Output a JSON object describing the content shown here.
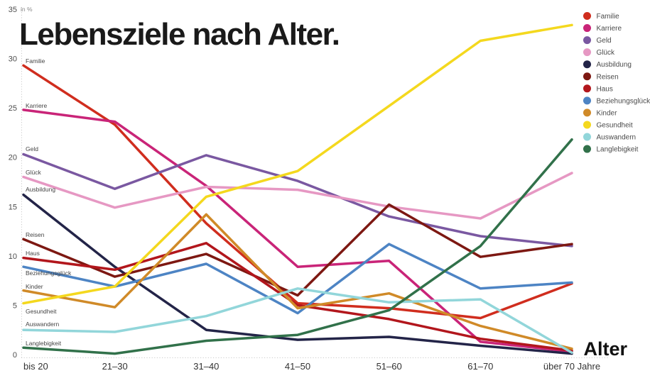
{
  "title": "Lebensziele nach Alter.",
  "y_axis": {
    "unit": "in %",
    "ticks": [
      35,
      30,
      25,
      20,
      15,
      10,
      5,
      0
    ]
  },
  "x_axis": {
    "label": "Alter"
  },
  "chart_data": {
    "type": "line",
    "title": "Lebensziele nach Alter.",
    "xlabel": "Alter",
    "ylabel": "in %",
    "ylim": [
      0,
      35
    ],
    "grid": false,
    "legend_position": "top-right",
    "categories": [
      "bis 20",
      "21–30",
      "31–40",
      "41–50",
      "51–60",
      "61–70",
      "über 70 Jahre"
    ],
    "series": [
      {
        "name": "Familie",
        "color": "#d02d1e",
        "values": [
          29.3,
          23.3,
          13.3,
          5.2,
          4.7,
          3.7,
          7.2
        ]
      },
      {
        "name": "Karriere",
        "color": "#c92478",
        "values": [
          24.8,
          23.6,
          17.1,
          8.9,
          9.5,
          1.3,
          0.3
        ]
      },
      {
        "name": "Geld",
        "color": "#7a58a1",
        "values": [
          20.3,
          16.8,
          20.2,
          17.6,
          14.0,
          12.0,
          11.0
        ]
      },
      {
        "name": "Glück",
        "color": "#e698c3",
        "values": [
          18.0,
          14.9,
          17.0,
          16.7,
          15.0,
          13.8,
          18.4
        ]
      },
      {
        "name": "Ausbildung",
        "color": "#232448",
        "values": [
          16.2,
          8.9,
          2.5,
          1.5,
          1.8,
          0.9,
          0.1
        ]
      },
      {
        "name": "Reisen",
        "color": "#7d1812",
        "values": [
          11.7,
          7.9,
          10.2,
          6.0,
          15.2,
          9.9,
          11.2
        ]
      },
      {
        "name": "Haus",
        "color": "#b2161c",
        "values": [
          9.8,
          8.6,
          11.3,
          5.0,
          3.6,
          1.6,
          0.4
        ]
      },
      {
        "name": "Beziehungsglück",
        "color": "#4d84c4",
        "values": [
          8.9,
          6.9,
          9.2,
          4.2,
          11.2,
          6.7,
          7.3
        ]
      },
      {
        "name": "Kinder",
        "color": "#d08a28",
        "values": [
          6.5,
          4.8,
          14.2,
          4.7,
          6.2,
          2.9,
          0.6
        ]
      },
      {
        "name": "Gesundheit",
        "color": "#f4d81e",
        "values": [
          5.2,
          6.9,
          16.0,
          18.6,
          25.2,
          31.8,
          33.4
        ]
      },
      {
        "name": "Auswandern",
        "color": "#92d6da",
        "values": [
          2.5,
          2.3,
          3.9,
          6.7,
          5.3,
          5.6,
          0.2
        ]
      },
      {
        "name": "Langlebigkeit",
        "color": "#31714a",
        "values": [
          0.7,
          0.1,
          1.4,
          2.0,
          4.5,
          11.0,
          21.8
        ]
      }
    ]
  }
}
